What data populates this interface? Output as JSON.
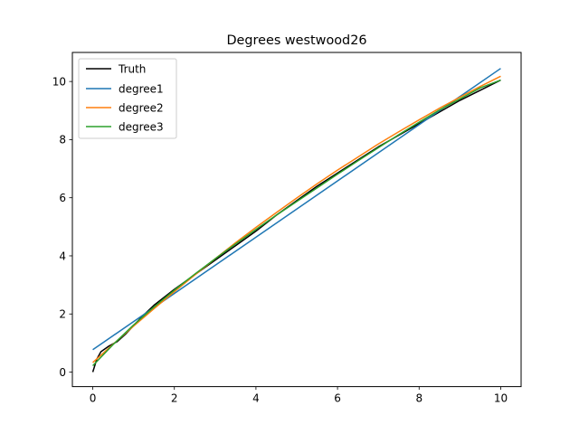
{
  "chart_data": {
    "type": "line",
    "title": "Degrees westwood26",
    "xlabel": "",
    "ylabel": "",
    "xlim": [
      -0.5,
      10.5
    ],
    "ylim": [
      -0.5,
      11.0
    ],
    "xticks": [
      0,
      2,
      4,
      6,
      8,
      10
    ],
    "yticks": [
      0,
      2,
      4,
      6,
      8,
      10
    ],
    "grid": false,
    "legend_position": "upper-left",
    "series": [
      {
        "name": "Truth",
        "color": "#000000",
        "x": [
          0,
          0.1,
          0.2,
          0.4,
          0.6,
          0.8,
          1.0,
          1.2,
          1.5,
          2.0,
          2.5,
          3.0,
          3.5,
          4.0,
          4.5,
          5.0,
          5.5,
          6.0,
          6.5,
          7.0,
          7.5,
          8.0,
          8.5,
          9.0,
          9.5,
          10.0
        ],
        "y": [
          0.0,
          0.45,
          0.7,
          0.9,
          1.05,
          1.3,
          1.6,
          1.9,
          2.3,
          2.85,
          3.35,
          3.85,
          4.35,
          4.85,
          5.4,
          5.9,
          6.4,
          6.85,
          7.3,
          7.75,
          8.15,
          8.55,
          8.95,
          9.35,
          9.7,
          10.05
        ]
      },
      {
        "name": "degree1",
        "color": "#1f77b4",
        "x": [
          0,
          10
        ],
        "y": [
          0.77,
          10.45
        ]
      },
      {
        "name": "degree2",
        "color": "#ff7f0e",
        "x": [
          0,
          0.5,
          1.0,
          1.5,
          2.0,
          2.5,
          3.0,
          3.5,
          4.0,
          4.5,
          5.0,
          5.5,
          6.0,
          6.5,
          7.0,
          7.5,
          8.0,
          8.5,
          9.0,
          9.5,
          10.0
        ],
        "y": [
          0.33,
          0.96,
          1.58,
          2.18,
          2.77,
          3.34,
          3.9,
          4.45,
          4.98,
          5.49,
          5.99,
          6.48,
          6.95,
          7.4,
          7.85,
          8.27,
          8.68,
          9.08,
          9.46,
          9.83,
          10.18
        ]
      },
      {
        "name": "degree3",
        "color": "#2ca02c",
        "x": [
          0,
          0.5,
          1.0,
          1.5,
          2.0,
          2.5,
          3.0,
          3.5,
          4.0,
          4.5,
          5.0,
          5.5,
          6.0,
          6.5,
          7.0,
          7.5,
          8.0,
          8.5,
          9.0,
          9.5,
          10.0
        ],
        "y": [
          0.22,
          0.95,
          1.62,
          2.24,
          2.82,
          3.37,
          3.9,
          4.41,
          4.91,
          5.4,
          5.87,
          6.34,
          6.81,
          7.27,
          7.72,
          8.17,
          8.6,
          9.02,
          9.4,
          9.78,
          10.05
        ]
      }
    ]
  }
}
